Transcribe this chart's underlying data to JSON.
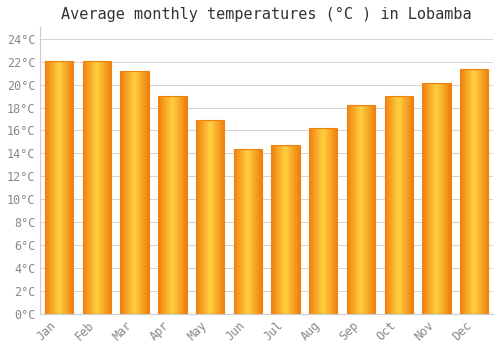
{
  "title": "Average monthly temperatures (°C ) in Lobamba",
  "months": [
    "Jan",
    "Feb",
    "Mar",
    "Apr",
    "May",
    "Jun",
    "Jul",
    "Aug",
    "Sep",
    "Oct",
    "Nov",
    "Dec"
  ],
  "values": [
    22.1,
    22.1,
    21.2,
    19.0,
    16.9,
    14.4,
    14.7,
    16.2,
    18.2,
    19.0,
    20.1,
    21.4
  ],
  "bar_color_center": "#FFD040",
  "bar_color_edge": "#F08010",
  "background_color": "#FFFFFF",
  "grid_color": "#CCCCCC",
  "ylim": [
    0,
    25
  ],
  "yticks": [
    0,
    2,
    4,
    6,
    8,
    10,
    12,
    14,
    16,
    18,
    20,
    22,
    24
  ],
  "title_fontsize": 11,
  "tick_fontsize": 8.5,
  "tick_color": "#888888",
  "title_color": "#333333",
  "bar_width": 0.75,
  "font_family": "monospace"
}
